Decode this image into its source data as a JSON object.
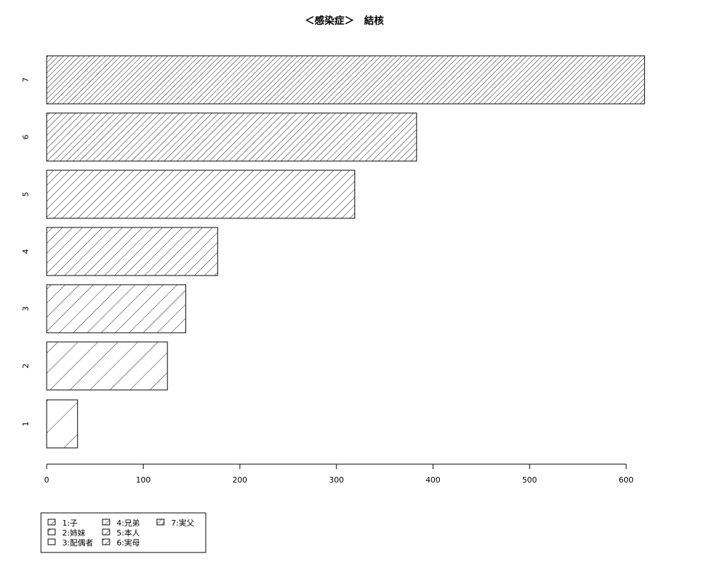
{
  "chart_data": {
    "type": "bar",
    "orientation": "horizontal",
    "title": "＜感染症＞　結核",
    "xlabel": "",
    "ylabel": "",
    "categories": [
      "1",
      "2",
      "3",
      "4",
      "5",
      "6",
      "7"
    ],
    "values": [
      32,
      125,
      144,
      177,
      319,
      383,
      619
    ],
    "xlim": [
      0,
      620
    ],
    "x_ticks": [
      0,
      100,
      200,
      300,
      400,
      500,
      600
    ],
    "grid": false,
    "fill": "hatched (diagonal lines, density increasing with category)",
    "legend": {
      "placement": "bottom-left",
      "entries": [
        "1:子",
        "2:姉妹",
        "3:配偶者",
        "4:兄弟",
        "5:本人",
        "6:実母",
        "7:実父"
      ]
    }
  }
}
